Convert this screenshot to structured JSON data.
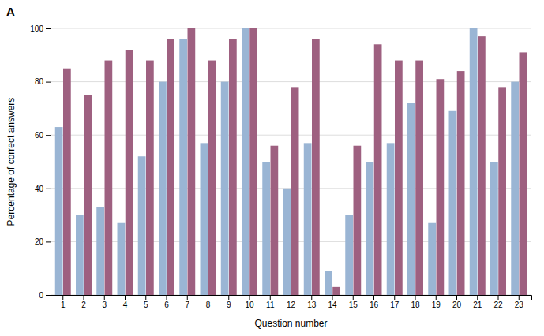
{
  "chart_data": {
    "type": "bar",
    "title": "A",
    "x_label": "Question number",
    "y_label": "Percentage of correct answers",
    "categories": [
      "1",
      "2",
      "3",
      "4",
      "5",
      "6",
      "7",
      "8",
      "9",
      "10",
      "11",
      "12",
      "13",
      "14",
      "15",
      "16",
      "17",
      "18",
      "19",
      "20",
      "21",
      "22",
      "23"
    ],
    "series": [
      {
        "color": "#9ab5d4",
        "values": [
          63,
          30,
          33,
          27,
          52,
          80,
          96,
          57,
          80,
          100,
          50,
          40,
          57,
          9,
          30,
          50,
          57,
          72,
          27,
          69,
          100,
          50,
          80
        ]
      },
      {
        "color": "#9e6080",
        "values": [
          85,
          75,
          88,
          92,
          88,
          96,
          100,
          88,
          96,
          100,
          56,
          78,
          96,
          3,
          56,
          94,
          88,
          88,
          81,
          84,
          97,
          78,
          91
        ]
      }
    ],
    "ylim": [
      0,
      100
    ],
    "yticks": [
      0,
      20,
      40,
      60,
      80,
      100
    ],
    "grid": true
  }
}
